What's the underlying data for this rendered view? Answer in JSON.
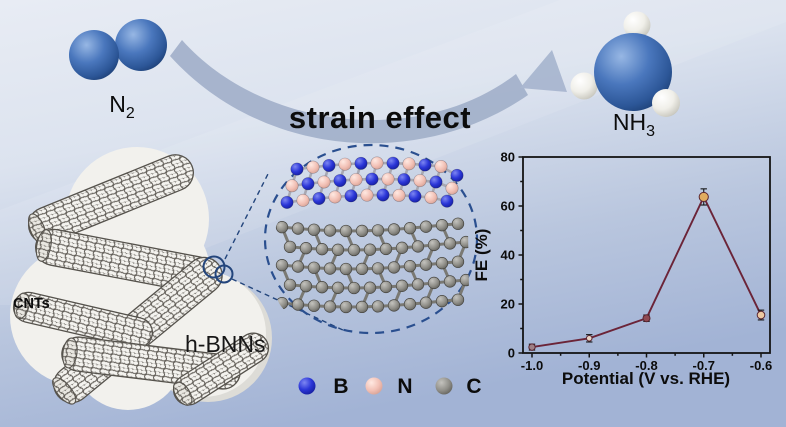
{
  "figure": {
    "reactant_label": {
      "main": "N",
      "sub": "2"
    },
    "product_label": {
      "main": "NH",
      "sub": "3"
    },
    "process_label": "strain effect",
    "cnts_label": "CNTs",
    "hbnns_label": "h-BNNs"
  },
  "legend": {
    "items": [
      {
        "element": "B",
        "color": "#2b36d8"
      },
      {
        "element": "N",
        "color": "#f2c0b5"
      },
      {
        "element": "C",
        "color": "#8f8e88"
      }
    ]
  },
  "chart_data": {
    "type": "line",
    "title": "",
    "x": [
      -1.0,
      -0.9,
      -0.8,
      -0.7,
      -0.6
    ],
    "x_tick_labels": [
      "-1.0",
      "-0.9",
      "-0.8",
      "-0.7",
      "-0.6"
    ],
    "series": [
      {
        "name": "FE",
        "values": [
          2.4,
          6.0,
          14.2,
          63.7,
          15.5
        ],
        "errors": [
          1.2,
          1.5,
          1.3,
          3.3,
          2.0
        ]
      }
    ],
    "xlabel": "Potential (V vs. RHE)",
    "ylabel": "FE (%)",
    "ylim": [
      0,
      80
    ],
    "yticks": [
      0,
      20,
      40,
      60,
      80
    ],
    "y_minor_ticks": [
      10,
      30,
      50,
      70
    ],
    "grid": false,
    "legend_position": "none",
    "line_color": "#6b2438",
    "marker_colors": [
      "#9e7f85",
      "#e8d3c4",
      "#8f4a52",
      "#e0ac60",
      "#ecc9a2"
    ],
    "marker_sizes": [
      3.2,
      2.8,
      3.5,
      4.6,
      3.8
    ]
  },
  "colors": {
    "background_top": "#e8ecf4",
    "background_bottom": "#a2b3d5",
    "arrow": "#a3b1ca",
    "nitrogen_sphere_blue": "#3c6cb4",
    "hydrogen_sphere_white": "#e9e8e1",
    "boron_atom_blue": "#2b36d8",
    "nitrogen_atom_pink": "#f2c0b5",
    "carbon_atom_gray": "#8f8e88",
    "callout_dash_blue": "#2a4f8f",
    "cnt_blob_white": "#f2f1ed"
  }
}
